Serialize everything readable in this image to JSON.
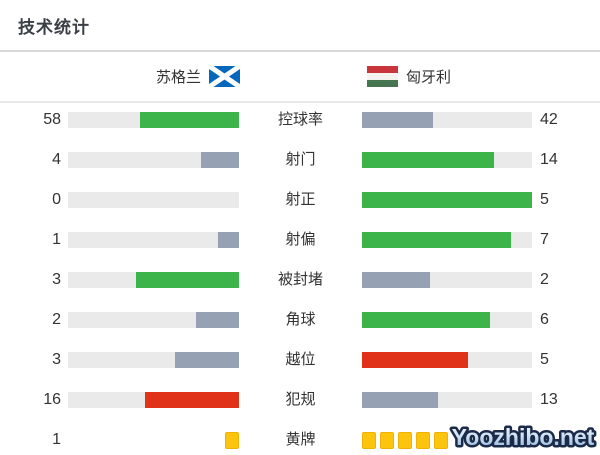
{
  "title": "技术统计",
  "teams": {
    "home": {
      "name": "苏格兰",
      "flag": "scotland-flag"
    },
    "away": {
      "name": "匈牙利",
      "flag": "hungary-flag"
    }
  },
  "watermark": "Yoozhibo.net",
  "colors": {
    "green": "#3cb44a",
    "slate": "#96a1b3",
    "red": "#e03119",
    "yellow": "#fcc40d",
    "yellow_border": "#f0b105",
    "track": "#eaeaea",
    "text": "#333333",
    "title": "#3a3f45",
    "divider1": "#d8d8d8",
    "divider2": "#e8e8e8",
    "scotland_blue": "#0568bd",
    "hungary_red": "#c8363c",
    "hungary_white": "#f5f3ef",
    "hungary_green": "#46764f",
    "watermark_outline": "#1b2a48"
  },
  "chart_data": {
    "type": "bar",
    "orientation": "horizontal-paired",
    "title": "技术统计",
    "legend_position": "top",
    "grid": false,
    "teams": [
      "苏格兰",
      "匈牙利"
    ],
    "categories": [
      "控球率",
      "射门",
      "射正",
      "射偏",
      "被封堵",
      "角球",
      "越位",
      "犯规",
      "黄牌"
    ],
    "series": [
      {
        "name": "苏格兰",
        "values": [
          58,
          4,
          0,
          1,
          3,
          2,
          3,
          16,
          1
        ]
      },
      {
        "name": "匈牙利",
        "values": [
          42,
          14,
          5,
          7,
          2,
          6,
          5,
          13,
          5
        ]
      }
    ],
    "bar_scale_note": "fill length = value / (home + away); 黄牌 row drawn as yellow card icons",
    "rows": [
      {
        "label": "控球率",
        "home": 58,
        "away": 42,
        "home_color": "green",
        "away_color": "slate",
        "style": "bar"
      },
      {
        "label": "射门",
        "home": 4,
        "away": 14,
        "home_color": "slate",
        "away_color": "green",
        "style": "bar"
      },
      {
        "label": "射正",
        "home": 0,
        "away": 5,
        "home_color": "green",
        "away_color": "green",
        "style": "bar"
      },
      {
        "label": "射偏",
        "home": 1,
        "away": 7,
        "home_color": "slate",
        "away_color": "green",
        "style": "bar"
      },
      {
        "label": "被封堵",
        "home": 3,
        "away": 2,
        "home_color": "green",
        "away_color": "slate",
        "style": "bar"
      },
      {
        "label": "角球",
        "home": 2,
        "away": 6,
        "home_color": "slate",
        "away_color": "green",
        "style": "bar"
      },
      {
        "label": "越位",
        "home": 3,
        "away": 5,
        "home_color": "slate",
        "away_color": "red",
        "style": "bar"
      },
      {
        "label": "犯规",
        "home": 16,
        "away": 13,
        "home_color": "red",
        "away_color": "slate",
        "style": "bar"
      },
      {
        "label": "黄牌",
        "home": 1,
        "away": 5,
        "icon_color": "yellow",
        "style": "cards"
      }
    ]
  }
}
